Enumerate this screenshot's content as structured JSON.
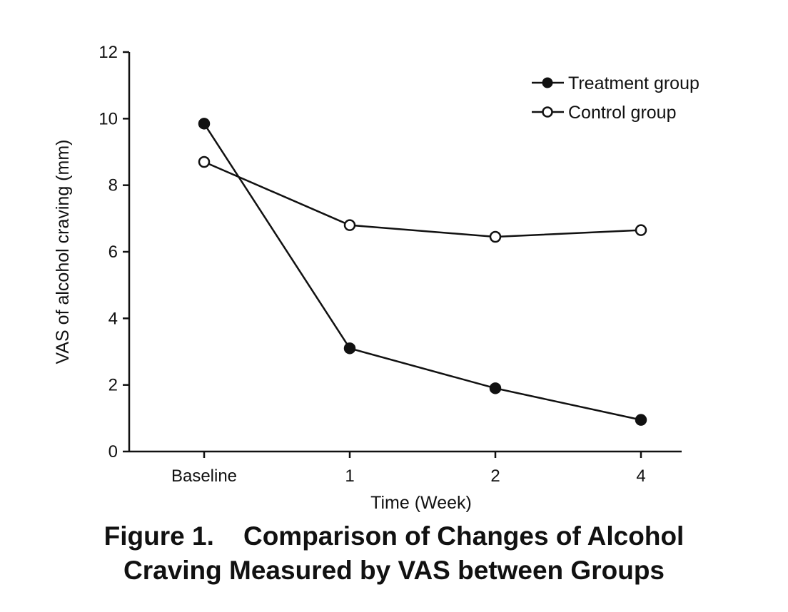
{
  "chart_data": {
    "type": "line",
    "categories": [
      "Baseline",
      "1",
      "2",
      "4"
    ],
    "xlabel": "Time (Week)",
    "ylabel": "VAS of alcohol craving (mm)",
    "ylim": [
      0,
      12
    ],
    "yticks": [
      "0",
      "2",
      "4",
      "6",
      "8",
      "10",
      "12"
    ],
    "grid": false,
    "legend_position": "top-right",
    "series": [
      {
        "name": "Treatment group",
        "marker": "filled-circle",
        "values": [
          9.85,
          3.1,
          1.9,
          0.95
        ]
      },
      {
        "name": "Control group",
        "marker": "open-circle",
        "values": [
          8.7,
          6.8,
          6.45,
          6.65
        ]
      }
    ]
  },
  "caption": {
    "line1": "Figure 1.    Comparison of Changes of Alcohol",
    "line2": "Craving Measured by VAS between Groups"
  }
}
